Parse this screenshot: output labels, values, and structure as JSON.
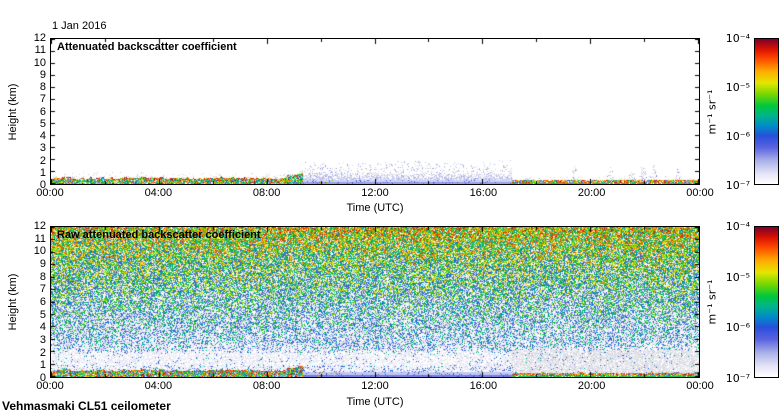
{
  "figure": {
    "date": "1 Jan 2016",
    "instrument": "Vehmasmaki CL51 ceilometer",
    "background_color": "#ffffff"
  },
  "colormap": {
    "description": "jet-like colormap with near-white at the low end",
    "stops": [
      [
        0.0,
        "#ffffff"
      ],
      [
        0.07,
        "#e4e4f6"
      ],
      [
        0.16,
        "#aab0ea"
      ],
      [
        0.25,
        "#5a64e0"
      ],
      [
        0.33,
        "#2850dc"
      ],
      [
        0.4,
        "#008cc8"
      ],
      [
        0.47,
        "#00b48c"
      ],
      [
        0.54,
        "#00c83c"
      ],
      [
        0.62,
        "#78d700"
      ],
      [
        0.7,
        "#e6e600"
      ],
      [
        0.78,
        "#ffaa00"
      ],
      [
        0.86,
        "#ff5000"
      ],
      [
        0.93,
        "#dc1400"
      ],
      [
        1.0,
        "#820028"
      ]
    ]
  },
  "chart_data": [
    {
      "type": "heatmap",
      "title": "Attenuated backscatter coefficient",
      "xlabel": "Time (UTC)",
      "ylabel": "Height (km)",
      "x_range_hours": [
        0,
        24
      ],
      "y_range_km": [
        0,
        12
      ],
      "x_tick_labels": [
        "00:00",
        "04:00",
        "08:00",
        "12:00",
        "16:00",
        "20:00",
        "00:00"
      ],
      "x_tick_interval_hours": 4,
      "x_minor_tick_interval_hours": 2,
      "y_tick_labels": [
        "0",
        "1",
        "2",
        "3",
        "4",
        "5",
        "6",
        "7",
        "8",
        "9",
        "10",
        "11",
        "12"
      ],
      "grid": false,
      "colorbar": {
        "scale": "log",
        "min": 1e-07,
        "max": 0.0001,
        "tick_labels": [
          "10⁻⁴",
          "10⁻⁵",
          "10⁻⁶",
          "10⁻⁷"
        ],
        "unit": "m⁻¹ sr⁻¹",
        "location": "right"
      },
      "features": [
        {
          "name": "surface-aerosol-band-morning",
          "hours": [
            0,
            9.3
          ],
          "height_km": [
            0,
            0.5
          ],
          "intensity": "1e-6 to 1e-4"
        },
        {
          "name": "shallow-fog-drizzle-layer",
          "hours": [
            9.3,
            17.05
          ],
          "height_km": [
            0,
            2.1
          ],
          "intensity": "below 1e-6, faint blue-gray"
        },
        {
          "name": "surface-aerosol-band-evening",
          "hours": [
            17.05,
            24
          ],
          "height_km": [
            0,
            0.35
          ],
          "intensity": "1e-6 to 1e-4"
        },
        {
          "name": "weak-echo-spikes",
          "spikes": [
            {
              "hour": 17.6,
              "height_km": 0.5
            },
            {
              "hour": 18.1,
              "height_km": 0.5
            },
            {
              "hour": 19.4,
              "height_km": 1.5
            },
            {
              "hour": 20.7,
              "height_km": 1.2
            },
            {
              "hour": 21.5,
              "height_km": 1.6
            },
            {
              "hour": 21.9,
              "height_km": 1.7
            },
            {
              "hour": 22.3,
              "height_km": 1.4
            },
            {
              "hour": 23.2,
              "height_km": 1.2
            }
          ]
        }
      ]
    },
    {
      "type": "heatmap",
      "title": "Raw attenuated backscatter coefficient",
      "xlabel": "Time (UTC)",
      "ylabel": "Height (km)",
      "x_range_hours": [
        0,
        24
      ],
      "y_range_km": [
        0,
        12
      ],
      "x_tick_labels": [
        "00:00",
        "04:00",
        "08:00",
        "12:00",
        "16:00",
        "20:00",
        "00:00"
      ],
      "x_tick_interval_hours": 4,
      "x_minor_tick_interval_hours": 2,
      "y_tick_labels": [
        "0",
        "1",
        "2",
        "3",
        "4",
        "5",
        "6",
        "7",
        "8",
        "9",
        "10",
        "11",
        "12"
      ],
      "grid": false,
      "colorbar": {
        "scale": "log",
        "min": 1e-07,
        "max": 0.0001,
        "tick_labels": [
          "10⁻⁴",
          "10⁻⁵",
          "10⁻⁶",
          "10⁻⁷"
        ],
        "unit": "m⁻¹ sr⁻¹",
        "location": "right"
      },
      "features": [
        {
          "name": "background-noise",
          "height_km": [
            0,
            12
          ],
          "note": "speckle noise amplitude increases with height, green-yellow aloft to blue below"
        },
        {
          "name": "clear-air-white-band",
          "height_km": [
            0.7,
            2.3
          ]
        },
        {
          "name": "surface-aerosol-band-morning",
          "hours": [
            0,
            9.3
          ],
          "height_km": [
            0,
            0.55
          ]
        },
        {
          "name": "shallow-fog-drizzle-layer",
          "hours": [
            9.3,
            17.05
          ],
          "height_km": [
            0,
            0.45
          ]
        },
        {
          "name": "surface-aerosol-band-evening",
          "hours": [
            17.05,
            24
          ],
          "height_km": [
            0,
            0.35
          ]
        },
        {
          "name": "weak-echo-spikes",
          "spikes": [
            {
              "hour": 17.6,
              "height_km": 1.0
            },
            {
              "hour": 18.1,
              "height_km": 1.2
            },
            {
              "hour": 19.4,
              "height_km": 2.2
            },
            {
              "hour": 20.7,
              "height_km": 2.0
            },
            {
              "hour": 21.5,
              "height_km": 2.4
            },
            {
              "hour": 21.9,
              "height_km": 2.5
            },
            {
              "hour": 22.3,
              "height_km": 2.2
            },
            {
              "hour": 23.2,
              "height_km": 2.0
            }
          ]
        }
      ]
    }
  ]
}
